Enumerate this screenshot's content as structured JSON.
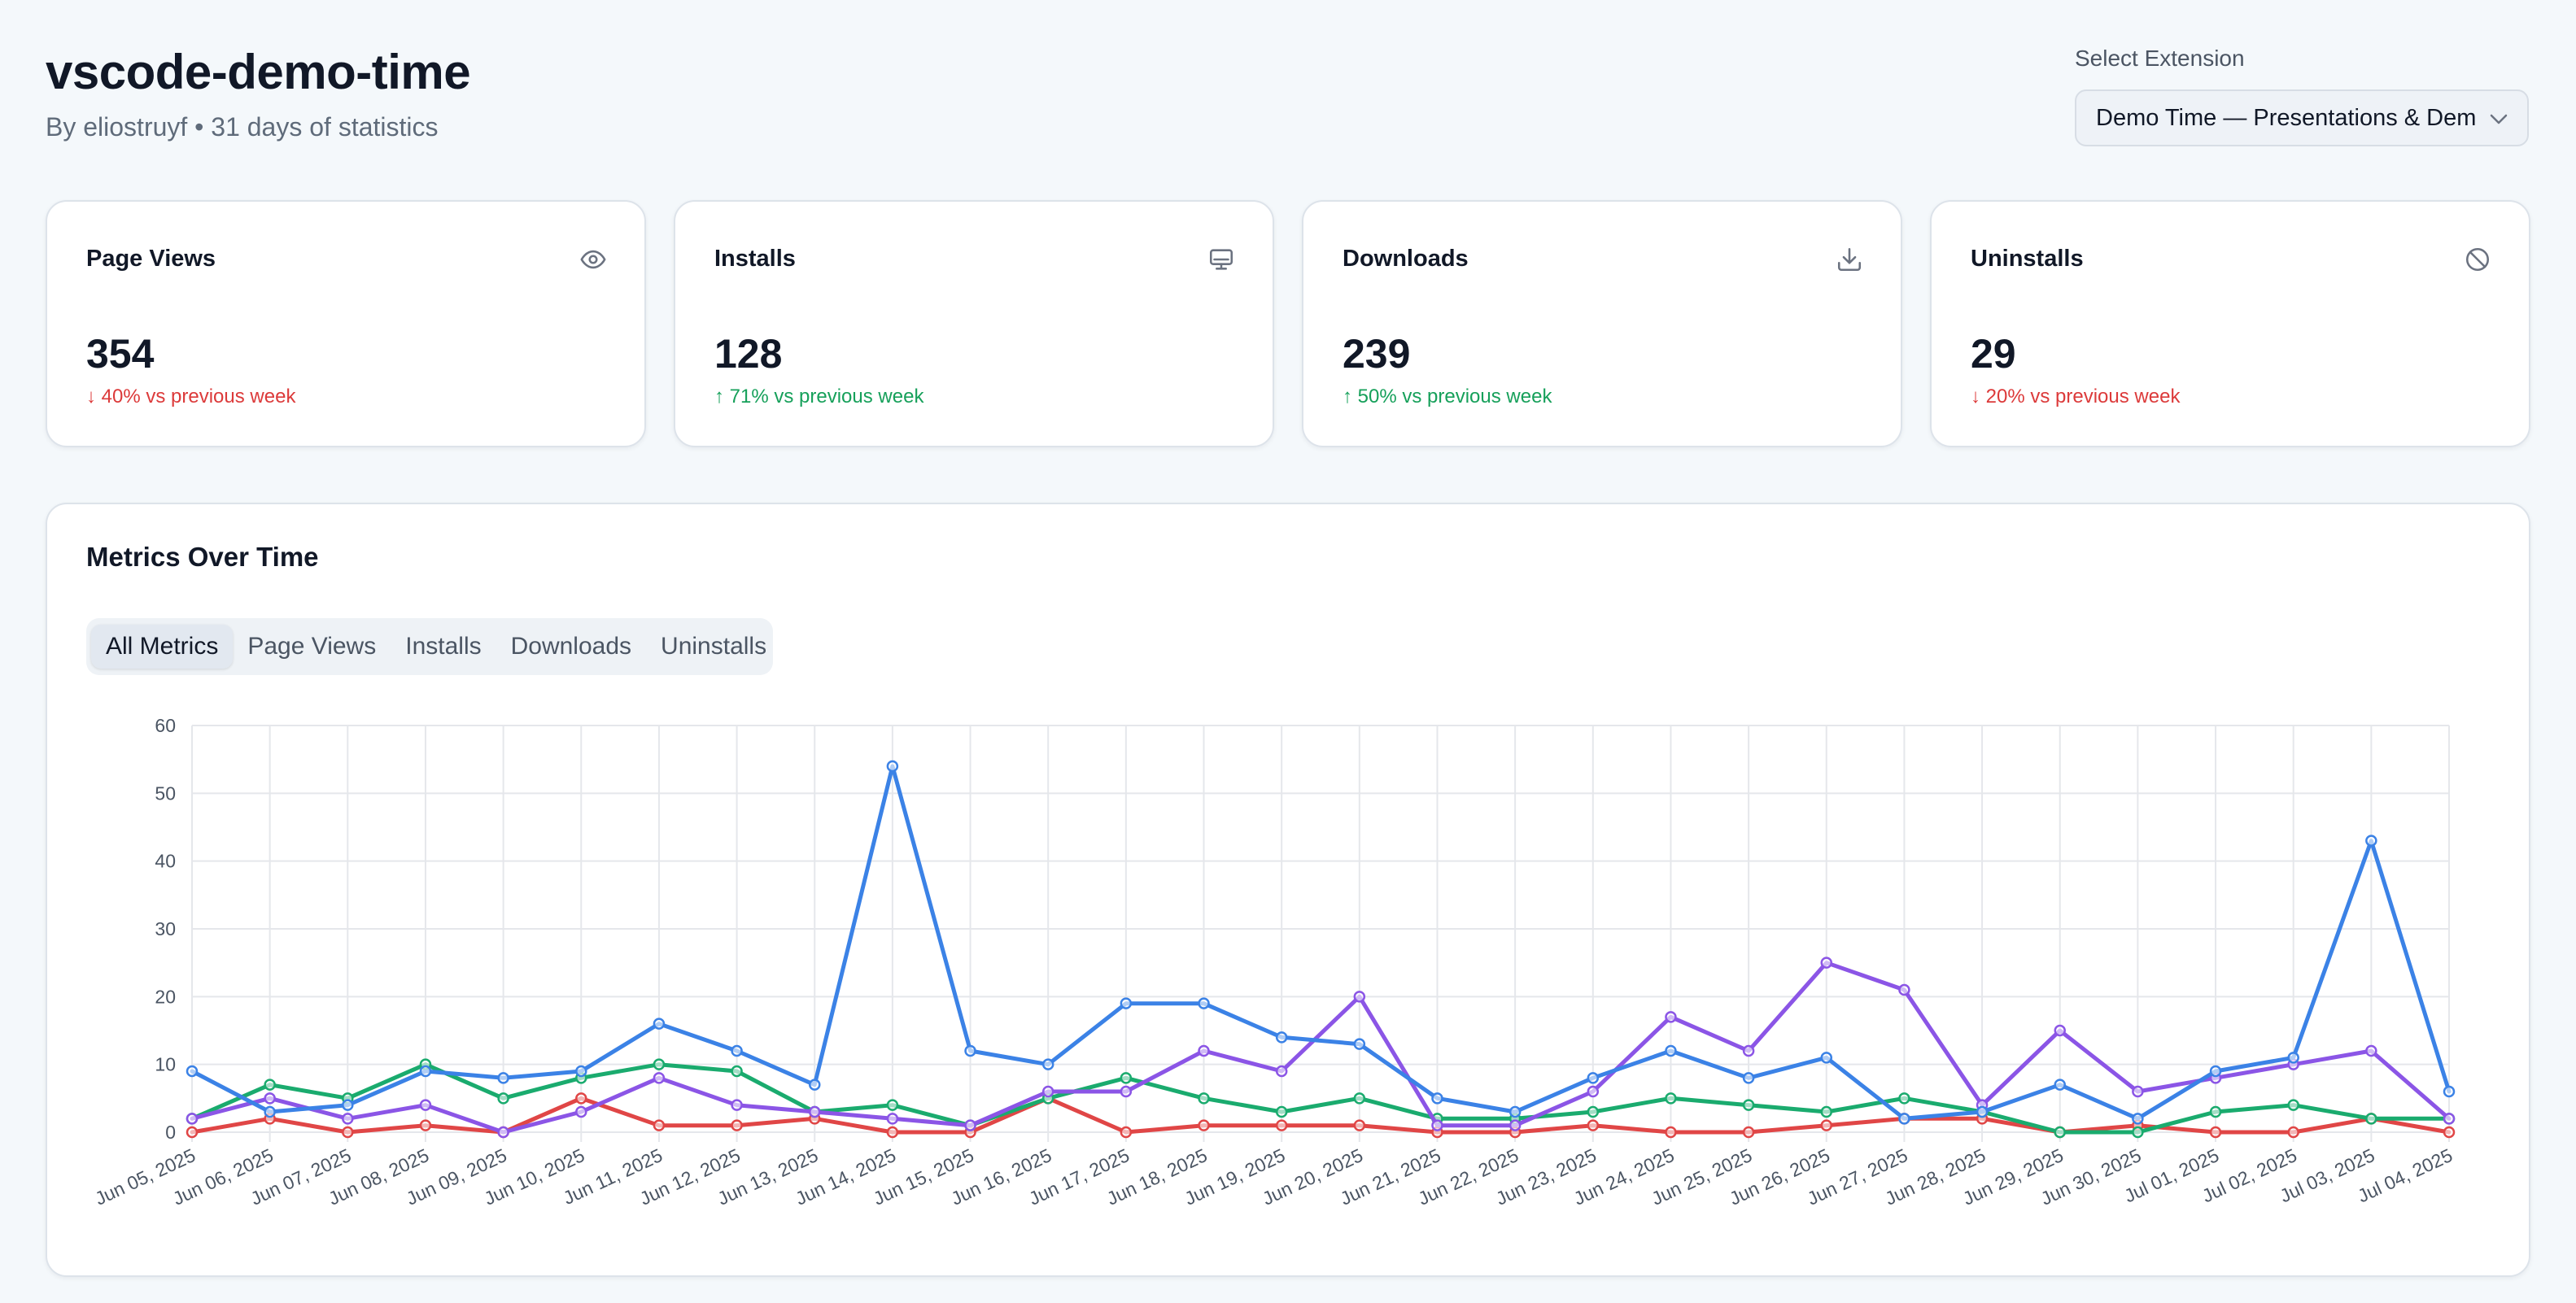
{
  "header": {
    "title": "vscode-demo-time",
    "subtitle": "By eliostruyf • 31 days of statistics"
  },
  "extension_select": {
    "label": "Select Extension",
    "value": "Demo Time — Presentations & Demos"
  },
  "cards": [
    {
      "title": "Page Views",
      "value": "354",
      "delta": "↓ 40% vs previous week",
      "trend": "down",
      "icon": "eye-icon"
    },
    {
      "title": "Installs",
      "value": "128",
      "delta": "↑ 71% vs previous week",
      "trend": "up",
      "icon": "monitor-icon"
    },
    {
      "title": "Downloads",
      "value": "239",
      "delta": "↑ 50% vs previous week",
      "trend": "up",
      "icon": "download-icon"
    },
    {
      "title": "Uninstalls",
      "value": "29",
      "delta": "↓ 20% vs previous week",
      "trend": "down",
      "icon": "ban-icon"
    }
  ],
  "panel": {
    "title": "Metrics Over Time",
    "tabs": [
      "All Metrics",
      "Page Views",
      "Installs",
      "Downloads",
      "Uninstalls"
    ],
    "active_tab": "All Metrics"
  },
  "colors": {
    "page_views": "#3b82e6",
    "installs": "#8b55e6",
    "downloads": "#1aab6e",
    "uninstalls": "#e04646",
    "grid": "#e5e7eb"
  },
  "chart_data": {
    "type": "line",
    "title": "",
    "xlabel": "",
    "ylabel": "",
    "ylim": [
      0,
      60
    ],
    "yticks": [
      0,
      10,
      20,
      30,
      40,
      50,
      60
    ],
    "grid": true,
    "categories": [
      "Jun 05, 2025",
      "Jun 06, 2025",
      "Jun 07, 2025",
      "Jun 08, 2025",
      "Jun 09, 2025",
      "Jun 10, 2025",
      "Jun 11, 2025",
      "Jun 12, 2025",
      "Jun 13, 2025",
      "Jun 14, 2025",
      "Jun 15, 2025",
      "Jun 16, 2025",
      "Jun 17, 2025",
      "Jun 18, 2025",
      "Jun 19, 2025",
      "Jun 20, 2025",
      "Jun 21, 2025",
      "Jun 22, 2025",
      "Jun 23, 2025",
      "Jun 24, 2025",
      "Jun 25, 2025",
      "Jun 26, 2025",
      "Jun 27, 2025",
      "Jun 28, 2025",
      "Jun 29, 2025",
      "Jun 30, 2025",
      "Jul 01, 2025",
      "Jul 02, 2025",
      "Jul 03, 2025",
      "Jul 04, 2025"
    ],
    "series": [
      {
        "key": "page_views",
        "values": [
          9,
          3,
          4,
          9,
          8,
          9,
          16,
          12,
          7,
          54,
          12,
          10,
          19,
          19,
          14,
          13,
          5,
          3,
          8,
          12,
          8,
          11,
          2,
          3,
          7,
          2,
          9,
          11,
          43,
          6
        ]
      },
      {
        "key": "installs",
        "values": [
          2,
          5,
          2,
          4,
          0,
          3,
          8,
          4,
          3,
          2,
          1,
          6,
          6,
          12,
          9,
          20,
          1,
          1,
          6,
          17,
          12,
          25,
          21,
          4,
          15,
          6,
          8,
          10,
          12,
          2
        ]
      },
      {
        "key": "downloads",
        "values": [
          2,
          7,
          5,
          10,
          5,
          8,
          10,
          9,
          3,
          4,
          1,
          5,
          8,
          5,
          3,
          5,
          2,
          2,
          3,
          5,
          4,
          3,
          5,
          3,
          0,
          0,
          3,
          4,
          2,
          2
        ]
      },
      {
        "key": "uninstalls",
        "values": [
          0,
          2,
          0,
          1,
          0,
          5,
          1,
          1,
          2,
          0,
          0,
          5,
          0,
          1,
          1,
          1,
          0,
          0,
          1,
          0,
          0,
          1,
          2,
          2,
          0,
          1,
          0,
          0,
          2,
          0
        ]
      }
    ]
  }
}
